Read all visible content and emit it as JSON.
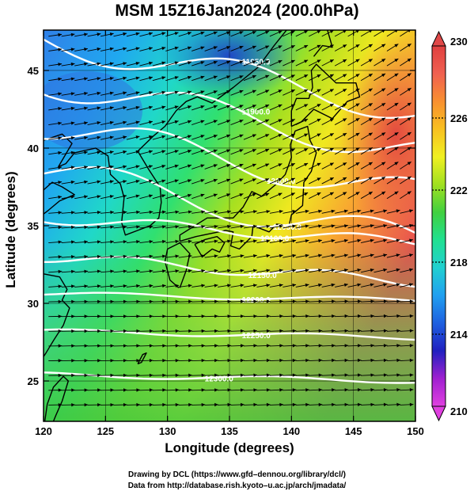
{
  "title": "MSM 15Z16Jan2024 (200.0hPa)",
  "xlabel": "Longitude (degrees)",
  "ylabel": "Latitude  (degrees)",
  "credits": [
    "Drawing by DCL (https://www.gfd–dennou.org/library/dcl/)",
    "Data from http://database.rish.kyoto–u.ac.jp/arch/jmadata/"
  ],
  "map": {
    "lon_range": [
      120,
      150
    ],
    "lat_range": [
      22.4,
      47.6
    ],
    "x_ticks": [
      "120",
      "125",
      "130",
      "135",
      "140",
      "145",
      "150"
    ],
    "y_ticks": [
      "25",
      "30",
      "35",
      "40",
      "45"
    ]
  },
  "colorbar": {
    "min": 210,
    "max": 230,
    "tick_labels": [
      "230",
      "226",
      "222",
      "218",
      "214",
      "210"
    ],
    "colors": [
      "#e040e0",
      "#a020d0",
      "#2020c0",
      "#1e60e0",
      "#20a0f0",
      "#20d0d0",
      "#20e090",
      "#40d040",
      "#a0e020",
      "#f0f020",
      "#f8c020",
      "#f89030",
      "#f06050",
      "#e04040"
    ]
  },
  "contours": [
    {
      "label": "11950.0"
    },
    {
      "label": "11900.0"
    },
    {
      "label": "12000.0"
    },
    {
      "label": "12050.0"
    },
    {
      "label": "12100.0"
    },
    {
      "label": "12150.0"
    },
    {
      "label": "12200.0"
    },
    {
      "label": "12250.0"
    },
    {
      "label": "12300.0"
    }
  ]
}
